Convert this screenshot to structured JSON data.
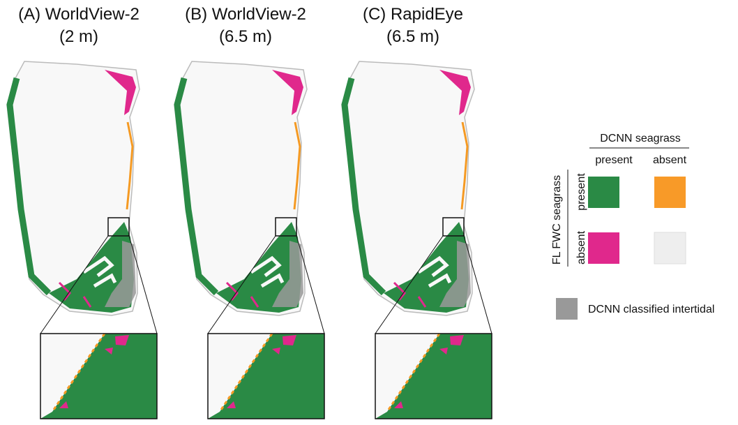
{
  "panels": [
    {
      "title": [
        "(A) WorldView-2",
        "(2 m)"
      ]
    },
    {
      "title": [
        "(B) WorldView-2",
        "(6.5 m)"
      ]
    },
    {
      "title": [
        "(C) RapidEye",
        "(6.5 m)"
      ]
    }
  ],
  "legend": {
    "column_header": "DCNN seagrass",
    "columns": [
      "present",
      "absent"
    ],
    "row_header": "FL FWC seagrass",
    "rows": [
      "present",
      "absent"
    ],
    "intertidal": "DCNN classified intertidal"
  }
}
